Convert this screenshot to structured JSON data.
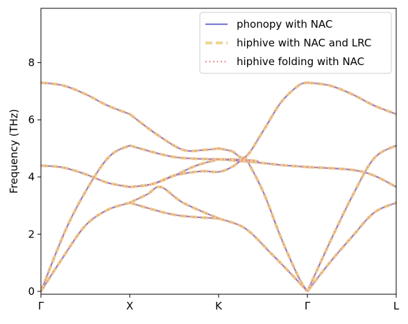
{
  "chart_data": {
    "type": "line",
    "xlabel": "",
    "ylabel": "Frequency (THz)",
    "xlim": [
      0,
      4
    ],
    "ylim": [
      -0.1,
      9.9
    ],
    "grid": false,
    "legend_position": "top-right",
    "x_ticks": [
      {
        "value": 0,
        "label": "Γ"
      },
      {
        "value": 1,
        "label": "X"
      },
      {
        "value": 2,
        "label": "K"
      },
      {
        "value": 3,
        "label": "Γ"
      },
      {
        "value": 4,
        "label": "L"
      }
    ],
    "y_ticks": [
      0,
      2,
      4,
      6,
      8
    ],
    "legend": [
      {
        "label": "phonopy with NAC",
        "color": "#7b7bd1",
        "dash": "solid"
      },
      {
        "label": "hiphive with NAC and LRC",
        "color": "#ecd28c",
        "dash": "dashed"
      },
      {
        "label": "hiphive folding with NAC",
        "color": "#ee9393",
        "dash": "dotted"
      }
    ],
    "series": [
      {
        "x": [
          0,
          0.25,
          0.5,
          0.75,
          1
        ],
        "values": [
          0,
          1.2,
          2.3,
          2.85,
          3.1
        ]
      },
      {
        "x": [
          1,
          1.5,
          2
        ],
        "values": [
          3.1,
          2.68,
          2.55
        ]
      },
      {
        "x": [
          2,
          2.3,
          2.6,
          2.85,
          3
        ],
        "values": [
          2.55,
          2.2,
          1.3,
          0.5,
          0
        ]
      },
      {
        "x": [
          3,
          3.25,
          3.5,
          3.75,
          4
        ],
        "values": [
          0,
          1.0,
          1.9,
          2.75,
          3.1
        ]
      },
      {
        "x": [
          0,
          0.3,
          0.6,
          0.8,
          1
        ],
        "values": [
          0,
          2.3,
          4.0,
          4.8,
          5.1
        ]
      },
      {
        "x": [
          1,
          1.5,
          2
        ],
        "values": [
          5.1,
          4.7,
          4.62
        ]
      },
      {
        "x": [
          2,
          2.4,
          2.7,
          3
        ],
        "values": [
          4.62,
          4.52,
          4.42,
          4.35
        ]
      },
      {
        "x": [
          0,
          0.25,
          0.5,
          0.75,
          1
        ],
        "values": [
          4.4,
          4.33,
          4.1,
          3.8,
          3.65
        ]
      },
      {
        "x": [
          1,
          1.25,
          1.5,
          1.75,
          2
        ],
        "values": [
          3.65,
          3.75,
          4.05,
          4.4,
          4.62
        ]
      },
      {
        "x": [
          2,
          2.1,
          2.3,
          2.45
        ],
        "values": [
          4.62,
          4.62,
          4.6,
          4.55
        ]
      },
      {
        "x": [
          3,
          3.5,
          3.75,
          4
        ],
        "values": [
          4.35,
          4.25,
          4.05,
          3.65
        ]
      },
      {
        "x": [
          1,
          1.2,
          1.35,
          1.6,
          2
        ],
        "values": [
          3.1,
          3.4,
          3.65,
          3.1,
          2.55
        ]
      },
      {
        "x": [
          1,
          1.25,
          1.5,
          1.8,
          2,
          2.15,
          2.3
        ],
        "values": [
          3.65,
          3.75,
          4.05,
          4.2,
          4.18,
          4.35,
          4.7
        ]
      },
      {
        "x": [
          2.3,
          2.5,
          2.7,
          2.9,
          3
        ],
        "values": [
          4.7,
          3.5,
          1.9,
          0.5,
          0
        ]
      },
      {
        "x": [
          3,
          3.25,
          3.5,
          3.75,
          4
        ],
        "values": [
          0,
          1.7,
          3.3,
          4.65,
          5.1
        ]
      },
      {
        "x": [
          1,
          1.3,
          1.6,
          1.85,
          2
        ],
        "values": [
          6.2,
          5.5,
          4.95,
          4.95,
          5.0
        ]
      },
      {
        "x": [
          2,
          2.15,
          2.3,
          2.5,
          2.7,
          2.9,
          3
        ],
        "values": [
          5.0,
          4.9,
          4.7,
          5.6,
          6.6,
          7.2,
          7.3
        ]
      },
      {
        "x": [
          0,
          0.25,
          0.5,
          0.75,
          1
        ],
        "values": [
          7.3,
          7.2,
          6.9,
          6.5,
          6.2
        ]
      },
      {
        "x": [
          3,
          3.25,
          3.5,
          3.75,
          4
        ],
        "values": [
          7.3,
          7.2,
          6.9,
          6.5,
          6.2
        ]
      }
    ]
  }
}
